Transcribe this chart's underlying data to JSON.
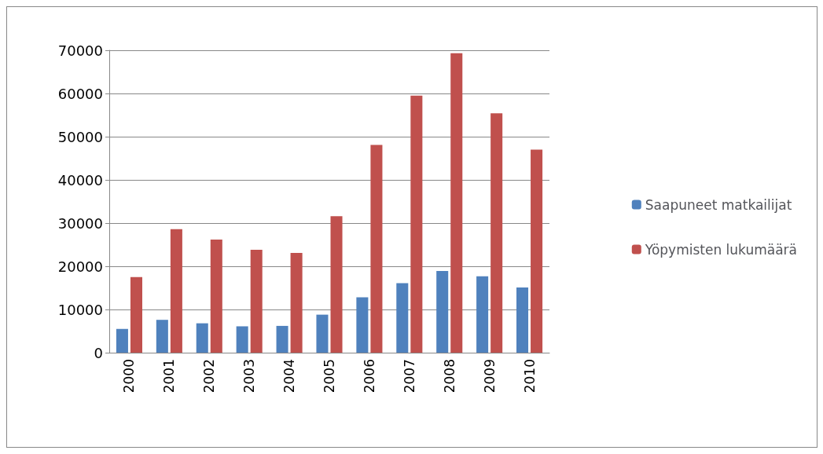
{
  "chart_data": {
    "type": "bar",
    "categories": [
      "2000",
      "2001",
      "2002",
      "2003",
      "2004",
      "2005",
      "2006",
      "2007",
      "2008",
      "2009",
      "2010"
    ],
    "series": [
      {
        "name": "Saapuneet matkailijat",
        "color": "#4f81bd",
        "values": [
          5500,
          7600,
          6800,
          6100,
          6200,
          8800,
          12800,
          16100,
          18900,
          17700,
          15100
        ]
      },
      {
        "name": "Yöpymisten lukumäärä",
        "color": "#c0504d",
        "values": [
          17500,
          28600,
          26200,
          23800,
          23100,
          31600,
          48100,
          59500,
          69300,
          55400,
          47000
        ]
      }
    ],
    "ylim": [
      0,
      70000
    ],
    "yticks": [
      0,
      10000,
      20000,
      30000,
      40000,
      50000,
      60000,
      70000
    ],
    "grid": "y",
    "legend": "right"
  }
}
